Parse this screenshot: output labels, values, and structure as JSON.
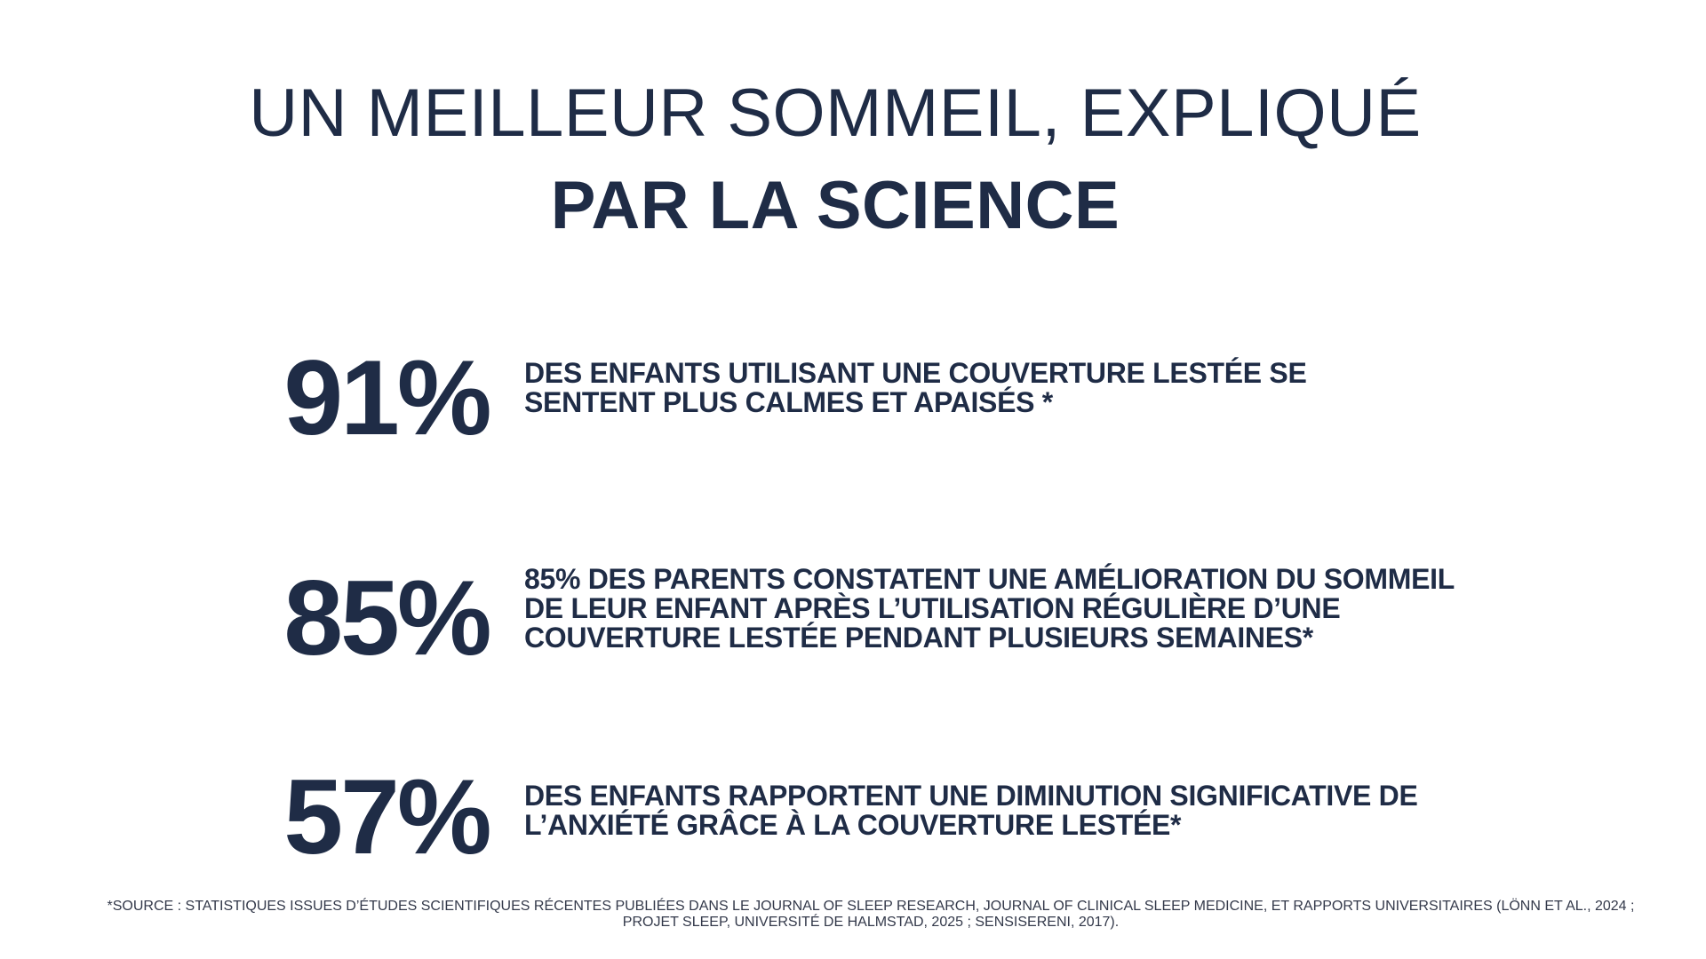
{
  "heading": {
    "line1": "UN MEILLEUR SOMMEIL, EXPLIQUÉ",
    "line2": "PAR LA SCIENCE"
  },
  "stats": [
    {
      "value": "91%",
      "lines": [
        "DES ENFANTS UTILISANT UNE COUVERTURE LESTÉE SE",
        "SENTENT PLUS CALMES ET APAISÉS *"
      ]
    },
    {
      "value": "85%",
      "lines": [
        "85% DES PARENTS CONSTATENT UNE AMÉLIORATION DU SOMMEIL",
        "DE LEUR ENFANT APRÈS L’UTILISATION RÉGULIÈRE D’UNE",
        "COUVERTURE LESTÉE PENDANT PLUSIEURS SEMAINES*"
      ]
    },
    {
      "value": "57%",
      "lines": [
        "DES ENFANTS RAPPORTENT UNE DIMINUTION SIGNIFICATIVE DE",
        "L’ANXIÉTÉ GRÂCE À LA COUVERTURE LESTÉE*"
      ]
    }
  ],
  "source": "*SOURCE : STATISTIQUES ISSUES D’ÉTUDES SCIENTIFIQUES RÉCENTES PUBLIÉES DANS LE JOURNAL OF SLEEP RESEARCH, JOURNAL OF CLINICAL SLEEP MEDICINE, ET RAPPORTS UNIVERSITAIRES (LÖNN ET AL., 2024 ; PROJET SLEEP, UNIVERSITÉ DE HALMSTAD, 2025 ; SENSISERENI, 2017).",
  "colors": {
    "text": "#1f2c46",
    "background": "#ffffff"
  }
}
